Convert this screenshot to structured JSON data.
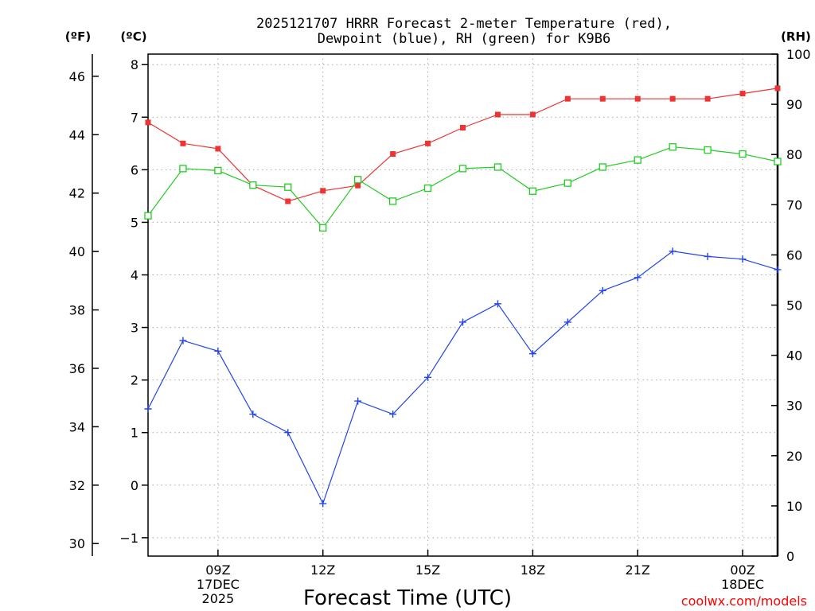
{
  "chart_data": {
    "type": "line",
    "title_line1": "2025121707 HRRR Forecast 2-meter Temperature (red),",
    "title_line2": "Dewpoint (blue), RH (green) for K9B6",
    "xlabel": "Forecast Time (UTC)",
    "watermark": "coolwx.com/models",
    "units": {
      "fahrenheit": "(ºF)",
      "celsius": "(ºC)",
      "rh": "(RH)"
    },
    "x_hours": [
      7,
      8,
      9,
      10,
      11,
      12,
      13,
      14,
      15,
      16,
      17,
      18,
      19,
      20,
      21,
      22,
      23,
      24,
      25
    ],
    "xlim": [
      7,
      25
    ],
    "x_ticks": [
      {
        "hour": 9,
        "lines": [
          "09Z",
          "17DEC",
          "2025"
        ]
      },
      {
        "hour": 12,
        "lines": [
          "12Z"
        ]
      },
      {
        "hour": 15,
        "lines": [
          "15Z"
        ]
      },
      {
        "hour": 18,
        "lines": [
          "18Z"
        ]
      },
      {
        "hour": 21,
        "lines": [
          "21Z"
        ]
      },
      {
        "hour": 24,
        "lines": [
          "00Z",
          "18DEC"
        ]
      }
    ],
    "celsius_axis": {
      "ylim": [
        -1.35,
        8.2
      ],
      "ticks": [
        -1,
        0,
        1,
        2,
        3,
        4,
        5,
        6,
        7,
        8
      ]
    },
    "fahrenheit_axis": {
      "ticks": [
        30,
        32,
        34,
        36,
        38,
        40,
        42,
        44,
        46
      ]
    },
    "rh_axis": {
      "ylim": [
        0,
        100
      ],
      "ticks": [
        0,
        10,
        20,
        30,
        40,
        50,
        60,
        70,
        80,
        90,
        100
      ]
    },
    "grid": true,
    "series": [
      {
        "name": "Temperature",
        "units": "C",
        "color": "#ee3333",
        "marker": "filled-square",
        "values": [
          6.9,
          6.5,
          6.4,
          5.7,
          5.4,
          5.6,
          5.7,
          6.3,
          6.5,
          6.8,
          7.05,
          7.05,
          7.35,
          7.35,
          7.35,
          7.35,
          7.35,
          7.45,
          7.55
        ]
      },
      {
        "name": "Dewpoint",
        "units": "C",
        "color": "#2244ee",
        "marker": "plus",
        "values": [
          1.45,
          2.75,
          2.55,
          1.35,
          1.0,
          -0.35,
          1.6,
          1.35,
          2.05,
          3.1,
          3.45,
          2.5,
          3.1,
          3.7,
          3.95,
          4.45,
          4.35,
          4.3,
          4.1
        ]
      },
      {
        "name": "RH",
        "units": "%",
        "color": "#22cc22",
        "marker": "open-square",
        "values": [
          67.8,
          77.2,
          76.8,
          73.9,
          73.5,
          65.4,
          75.0,
          70.7,
          73.3,
          77.2,
          77.5,
          72.7,
          74.3,
          77.5,
          78.9,
          81.5,
          80.9,
          80.1,
          78.6
        ]
      }
    ]
  }
}
